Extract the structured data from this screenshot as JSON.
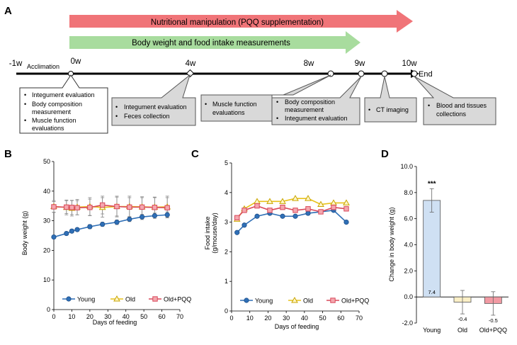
{
  "panel_a": {
    "label": "A",
    "arrow_red": {
      "text": "Nutritional manipulation (PQQ supplementation)",
      "color": "#f07478"
    },
    "arrow_green": {
      "text": "Body weight and food intake measurements",
      "color": "#a8dc9e"
    },
    "timeline": {
      "labels": [
        "-1w",
        "0w",
        "4w",
        "8w",
        "9w",
        "10w"
      ],
      "acclimation": "Acclimation",
      "end": "End"
    },
    "box_0w": [
      "Integument evaluation",
      "Body composition",
      "measurement",
      "Muscle function",
      "evaluations"
    ],
    "box_4w": [
      "Integument evaluation",
      "Feces collection"
    ],
    "box_8w": [
      "Muscle function",
      "evaluations"
    ],
    "box_9w": [
      "Body composition",
      "measurement",
      "Integument evaluation"
    ],
    "box_ct": [
      "CT imaging"
    ],
    "box_blood": [
      "Blood and tissues",
      "collections"
    ],
    "bullet": "•"
  },
  "chart_data": [
    {
      "panel": "B",
      "type": "line",
      "ylabel": "Body weight (g)",
      "xlabel": "Days of feeding",
      "xlim": [
        0,
        70
      ],
      "ylim": [
        0,
        50
      ],
      "xticks": [
        "0",
        "10",
        "20",
        "30",
        "40",
        "50",
        "60",
        "70"
      ],
      "yticks": [
        "0",
        "10",
        "20",
        "30",
        "40",
        "50"
      ],
      "legend": [
        "Young",
        "Old",
        "Old+PQQ"
      ],
      "series": [
        {
          "name": "Young",
          "color": "#2f6fb6",
          "marker": "circle",
          "x": [
            0,
            7,
            10,
            13,
            20,
            27,
            35,
            42,
            49,
            56,
            63
          ],
          "y": [
            24.5,
            25.7,
            26.5,
            27.0,
            28.0,
            28.8,
            29.5,
            30.5,
            31.3,
            31.7,
            32.0
          ],
          "err": [
            0.5,
            0.5,
            0.6,
            0.6,
            0.7,
            0.7,
            0.8,
            0.8,
            0.9,
            0.9,
            1.0
          ]
        },
        {
          "name": "Old",
          "color": "#e8c21a",
          "marker": "triangle",
          "x": [
            0,
            7,
            10,
            13,
            20,
            27,
            35,
            42,
            49,
            56,
            63
          ],
          "y": [
            34.8,
            34.5,
            34.2,
            34.6,
            34.8,
            34.5,
            34.8,
            34.8,
            34.7,
            34.6,
            34.7
          ],
          "err": [
            2.0,
            2.5,
            2.6,
            2.6,
            3.0,
            3.3,
            3.5,
            3.5,
            3.4,
            3.4,
            3.6
          ]
        },
        {
          "name": "Old+PQQ",
          "color": "#d9485a",
          "marker": "square",
          "x": [
            0,
            7,
            10,
            13,
            20,
            27,
            35,
            42,
            49,
            56,
            63
          ],
          "y": [
            34.7,
            34.6,
            34.5,
            34.4,
            34.5,
            35.3,
            34.8,
            34.6,
            34.6,
            34.5,
            34.4
          ],
          "err": [
            1.8,
            2.2,
            2.4,
            2.4,
            2.8,
            3.0,
            3.2,
            3.2,
            3.2,
            3.3,
            3.4
          ]
        }
      ]
    },
    {
      "panel": "C",
      "type": "line",
      "ylabel": "Food intake (g/mouse/day)",
      "ylabel_line1": "Food intake",
      "ylabel_line2": "(g/mouse/day)",
      "xlabel": "Days of feeding",
      "xlim": [
        0,
        70
      ],
      "ylim": [
        0,
        5
      ],
      "xticks": [
        "0",
        "10",
        "20",
        "30",
        "40",
        "50",
        "60",
        "70"
      ],
      "yticks": [
        "0",
        "1",
        "2",
        "3",
        "4",
        "5"
      ],
      "legend": [
        "Young",
        "Old",
        "Old+PQQ"
      ],
      "series": [
        {
          "name": "Young",
          "color": "#2f6fb6",
          "marker": "circle",
          "x": [
            3,
            7,
            14,
            21,
            28,
            35,
            42,
            49,
            56,
            63
          ],
          "y": [
            2.65,
            2.9,
            3.2,
            3.3,
            3.2,
            3.2,
            3.3,
            3.35,
            3.4,
            3.0
          ]
        },
        {
          "name": "Old",
          "color": "#e8c21a",
          "marker": "triangle",
          "x": [
            3,
            7,
            14,
            21,
            28,
            35,
            42,
            49,
            56,
            63
          ],
          "y": [
            3.1,
            3.45,
            3.7,
            3.7,
            3.7,
            3.8,
            3.8,
            3.6,
            3.65,
            3.65
          ]
        },
        {
          "name": "Old+PQQ",
          "color": "#d9485a",
          "marker": "square",
          "x": [
            3,
            7,
            14,
            21,
            28,
            35,
            42,
            49,
            56,
            63
          ],
          "y": [
            3.15,
            3.4,
            3.55,
            3.4,
            3.5,
            3.4,
            3.45,
            3.35,
            3.5,
            3.45
          ]
        }
      ]
    },
    {
      "panel": "D",
      "type": "bar",
      "ylabel": "Change in body weight (g)",
      "categories": [
        "Young",
        "Old",
        "Old+PQQ"
      ],
      "values": [
        7.4,
        -0.4,
        -0.5
      ],
      "value_labels": [
        "7.4",
        "-0.4",
        "-0.5"
      ],
      "errors": [
        0.9,
        0.9,
        0.9
      ],
      "colors": [
        "#cfe0f3",
        "#fbefc6",
        "#f29aa3"
      ],
      "ylim": [
        -2.0,
        10.0
      ],
      "yticks": [
        "-2.0",
        "0.0",
        "2.0",
        "4.0",
        "6.0",
        "8.0",
        "10.0"
      ],
      "significance": "***"
    }
  ],
  "panel_labels": {
    "b": "B",
    "c": "C",
    "d": "D"
  }
}
